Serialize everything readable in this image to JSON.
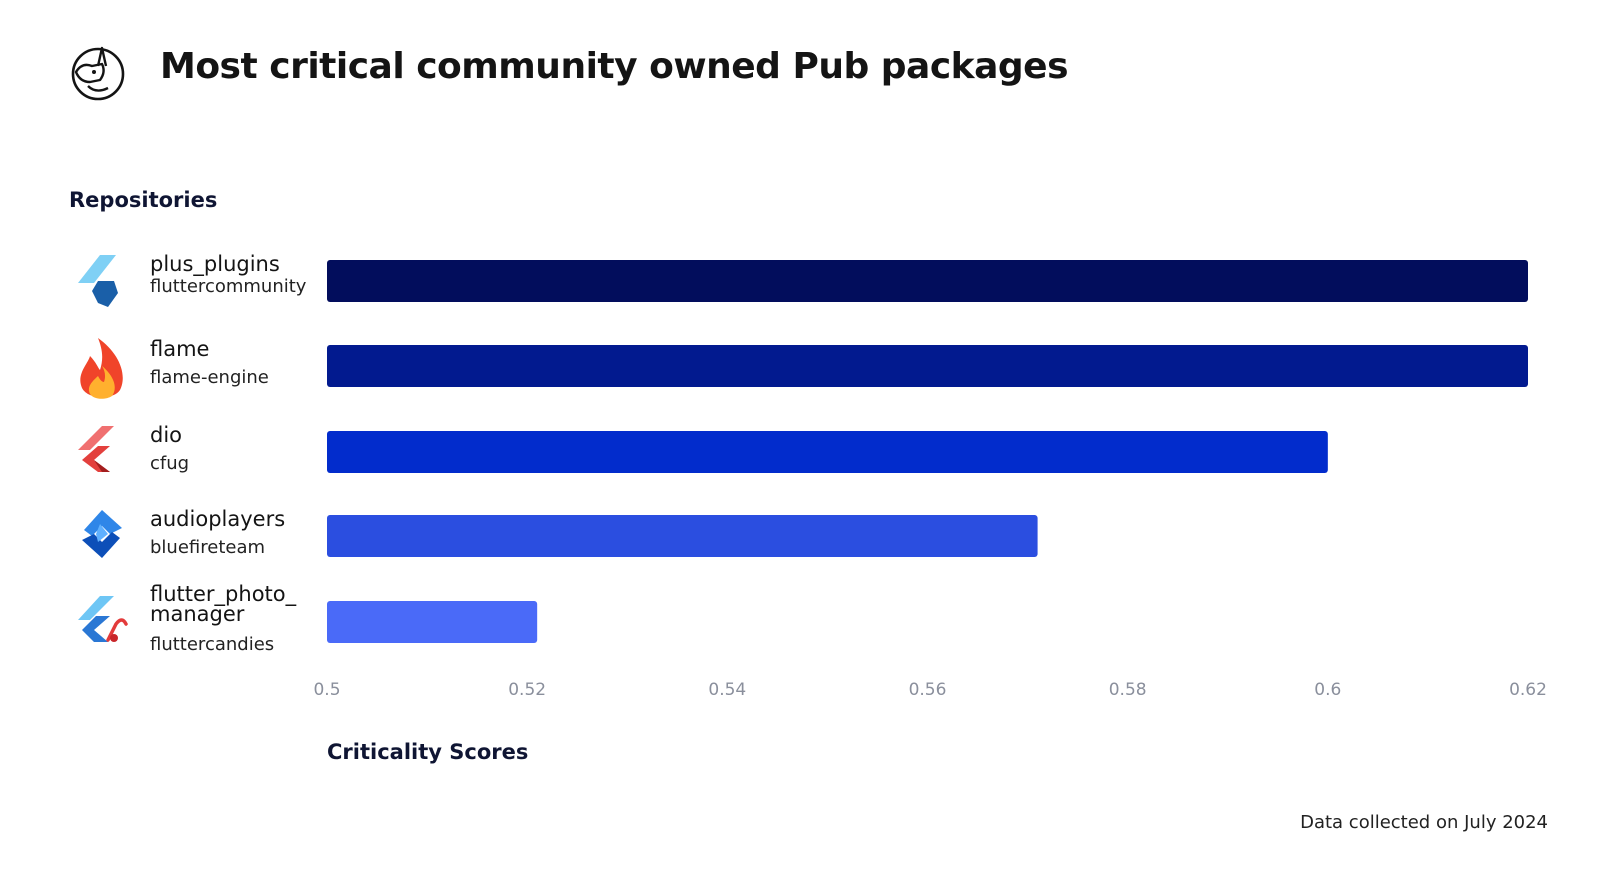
{
  "header": {
    "title": "Most critical community owned Pub packages"
  },
  "chart_data": {
    "type": "bar",
    "orientation": "horizontal",
    "title": "Most critical community owned Pub packages",
    "ylabel": "Repositories",
    "xlabel": "Criticality Scores",
    "xlim": [
      0.5,
      0.62
    ],
    "xticks": [
      "0.5",
      "0.52",
      "0.54",
      "0.56",
      "0.58",
      "0.6",
      "0.62"
    ],
    "xtick_values": [
      0.5,
      0.52,
      0.54,
      0.56,
      0.58,
      0.6,
      0.62
    ],
    "categories": [
      {
        "name_lines": [
          "plus_plugins"
        ],
        "org": "fluttercommunity",
        "icon": "plus-plugins-icon"
      },
      {
        "name_lines": [
          "flame"
        ],
        "org": "flame-engine",
        "icon": "flame-icon"
      },
      {
        "name_lines": [
          "dio"
        ],
        "org": "cfug",
        "icon": "dio-icon"
      },
      {
        "name_lines": [
          "audioplayers"
        ],
        "org": "bluefireteam",
        "icon": "audioplayers-icon"
      },
      {
        "name_lines": [
          "flutter_photo_",
          "manager"
        ],
        "org": "fluttercandies",
        "icon": "flutter-candies-icon"
      }
    ],
    "values": [
      0.62,
      0.62,
      0.6,
      0.571,
      0.521
    ],
    "colors": [
      "#020d5c",
      "#021a8f",
      "#022ccc",
      "#2b4ee0",
      "#4a6af8"
    ]
  },
  "footer": {
    "note": "Data collected on July 2024"
  }
}
